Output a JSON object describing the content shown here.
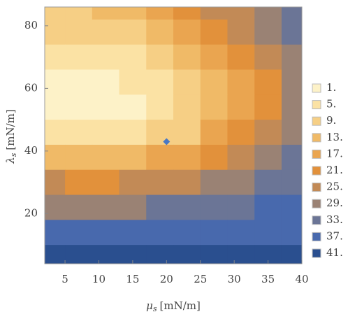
{
  "chart_data": {
    "type": "contour",
    "xlabel": {
      "symbol": "μ",
      "subscript": "s",
      "unit": "[mN/m]"
    },
    "ylabel": {
      "symbol": "λ",
      "subscript": "s",
      "unit": "[mN/m]"
    },
    "xlim": [
      2,
      40
    ],
    "ylim": [
      4,
      86
    ],
    "xticks": [
      5,
      10,
      15,
      20,
      25,
      30,
      35,
      40
    ],
    "yticks": [
      20,
      40,
      60,
      80
    ],
    "x": [
      3,
      7,
      11,
      15,
      19,
      23,
      27,
      31,
      35,
      39
    ],
    "y": [
      86,
      78,
      70,
      62,
      54,
      46,
      38,
      30,
      22,
      14,
      6
    ],
    "z": [
      [
        12,
        12,
        13,
        16,
        19,
        22,
        25,
        28,
        32,
        35
      ],
      [
        9,
        9,
        10,
        12,
        15,
        18,
        21,
        25,
        29,
        33
      ],
      [
        5,
        5,
        6,
        8,
        10,
        13,
        17,
        21,
        26,
        31
      ],
      [
        3,
        2,
        3,
        5,
        7,
        10,
        14,
        19,
        24,
        29
      ],
      [
        3,
        1,
        2,
        4,
        6,
        9,
        13,
        18,
        24,
        29
      ],
      [
        7,
        6,
        6,
        7,
        9,
        12,
        17,
        22,
        27,
        31
      ],
      [
        15,
        14,
        14,
        15,
        17,
        20,
        24,
        28,
        31,
        34
      ],
      [
        25,
        24,
        24,
        25,
        26,
        28,
        30,
        32,
        34,
        36
      ],
      [
        32,
        32,
        32,
        32,
        33,
        34,
        35,
        36,
        37,
        38
      ],
      [
        37,
        37,
        37,
        37,
        37,
        38,
        38,
        39,
        39,
        40
      ],
      [
        41,
        41,
        41,
        41,
        41,
        41,
        41,
        42,
        42,
        42
      ]
    ],
    "levels": [
      {
        "value": 1,
        "label": "1."
      },
      {
        "value": 5,
        "label": "5."
      },
      {
        "value": 9,
        "label": "9."
      },
      {
        "value": 13,
        "label": "13."
      },
      {
        "value": 17,
        "label": "17."
      },
      {
        "value": 21,
        "label": "21."
      },
      {
        "value": 25,
        "label": "25."
      },
      {
        "value": 29,
        "label": "29."
      },
      {
        "value": 33,
        "label": "33."
      },
      {
        "value": 37,
        "label": "37."
      },
      {
        "value": 41,
        "label": "41."
      }
    ],
    "level_colors": [
      "#fdf2c8",
      "#fbe2a4",
      "#f6cf85",
      "#f0ba67",
      "#eaa550",
      "#e2913b",
      "#c28a56",
      "#9a8274",
      "#6b7596",
      "#4869ad",
      "#2a4f8f"
    ],
    "marker": {
      "x": 20,
      "y": 43,
      "color": "#4a78c4"
    }
  }
}
